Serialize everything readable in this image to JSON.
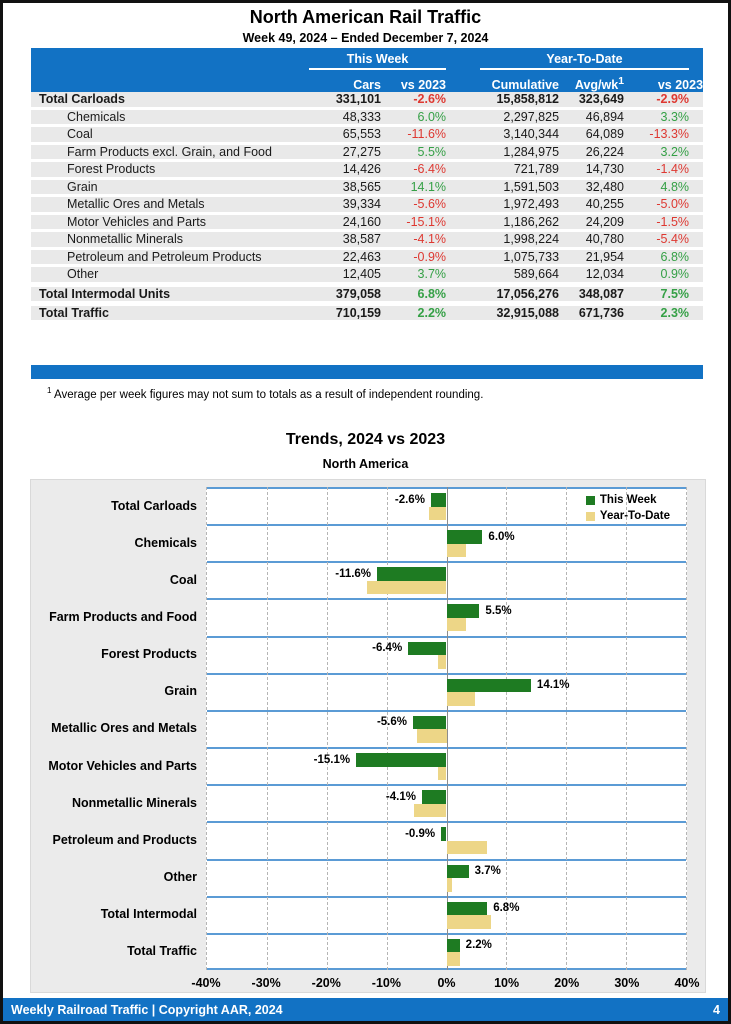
{
  "page": {
    "title": "North American Rail Traffic",
    "subtitle": "Week 49, 2024 – Ended December 7, 2024",
    "footnote_marker": "1",
    "footnote_text": " Average per week figures may not sum to totals as a result of independent rounding.",
    "footer_left": "Weekly Railroad Traffic | Copyright AAR, 2024",
    "footer_page": "4"
  },
  "colors": {
    "accent_blue": "#1272C4",
    "grid_blue": "#5B9BD5",
    "negative_red": "#DE3831",
    "positive_green": "#35A046",
    "bar_green": "#1E7B22",
    "bar_tan": "#EDD687",
    "row_gray": "#E9E9E9",
    "panel_gray": "#EBEBEB"
  },
  "table": {
    "group_this_week": "This Week",
    "group_ytd": "Year-To-Date",
    "col_cars": "Cars",
    "col_tw_vs": "vs 2023",
    "col_cumulative": "Cumulative",
    "col_avgwk": "Avg/wk",
    "col_avgwk_sup": "1",
    "col_ytd_vs": "vs 2023",
    "rows": [
      {
        "name": "Total Carloads",
        "cars": "331,101",
        "tw_vs": "-2.6%",
        "cumulative": "15,858,812",
        "avgwk": "323,649",
        "ytd_vs": "-2.9%",
        "style": "total"
      },
      {
        "name": "Chemicals",
        "cars": "48,333",
        "tw_vs": "6.0%",
        "cumulative": "2,297,825",
        "avgwk": "46,894",
        "ytd_vs": "3.3%",
        "style": "sub"
      },
      {
        "name": "Coal",
        "cars": "65,553",
        "tw_vs": "-11.6%",
        "cumulative": "3,140,344",
        "avgwk": "64,089",
        "ytd_vs": "-13.3%",
        "style": "sub"
      },
      {
        "name": "Farm Products excl. Grain, and Food",
        "cars": "27,275",
        "tw_vs": "5.5%",
        "cumulative": "1,284,975",
        "avgwk": "26,224",
        "ytd_vs": "3.2%",
        "style": "sub"
      },
      {
        "name": "Forest Products",
        "cars": "14,426",
        "tw_vs": "-6.4%",
        "cumulative": "721,789",
        "avgwk": "14,730",
        "ytd_vs": "-1.4%",
        "style": "sub"
      },
      {
        "name": "Grain",
        "cars": "38,565",
        "tw_vs": "14.1%",
        "cumulative": "1,591,503",
        "avgwk": "32,480",
        "ytd_vs": "4.8%",
        "style": "sub"
      },
      {
        "name": "Metallic Ores and Metals",
        "cars": "39,334",
        "tw_vs": "-5.6%",
        "cumulative": "1,972,493",
        "avgwk": "40,255",
        "ytd_vs": "-5.0%",
        "style": "sub"
      },
      {
        "name": "Motor Vehicles and Parts",
        "cars": "24,160",
        "tw_vs": "-15.1%",
        "cumulative": "1,186,262",
        "avgwk": "24,209",
        "ytd_vs": "-1.5%",
        "style": "sub"
      },
      {
        "name": "Nonmetallic Minerals",
        "cars": "38,587",
        "tw_vs": "-4.1%",
        "cumulative": "1,998,224",
        "avgwk": "40,780",
        "ytd_vs": "-5.4%",
        "style": "sub"
      },
      {
        "name": "Petroleum and Petroleum Products",
        "cars": "22,463",
        "tw_vs": "-0.9%",
        "cumulative": "1,075,733",
        "avgwk": "21,954",
        "ytd_vs": "6.8%",
        "style": "sub"
      },
      {
        "name": "Other",
        "cars": "12,405",
        "tw_vs": "3.7%",
        "cumulative": "589,664",
        "avgwk": "12,034",
        "ytd_vs": "0.9%",
        "style": "sub"
      },
      {
        "name": "Total Intermodal Units",
        "cars": "379,058",
        "tw_vs": "6.8%",
        "cumulative": "17,056,276",
        "avgwk": "348,087",
        "ytd_vs": "7.5%",
        "style": "total gap"
      },
      {
        "name": "Total Traffic",
        "cars": "710,159",
        "tw_vs": "2.2%",
        "cumulative": "32,915,088",
        "avgwk": "671,736",
        "ytd_vs": "2.3%",
        "style": "total gap"
      }
    ]
  },
  "chart_data": {
    "type": "bar",
    "orientation": "horizontal",
    "title": "Trends, 2024 vs 2023",
    "subtitle": "North America",
    "categories": [
      "Total Carloads",
      "Chemicals",
      "Coal",
      "Farm Products and Food",
      "Forest Products",
      "Grain",
      "Metallic Ores and Metals",
      "Motor Vehicles and Parts",
      "Nonmetallic Minerals",
      "Petroleum and Products",
      "Other",
      "Total Intermodal",
      "Total Traffic"
    ],
    "series": [
      {
        "name": "This Week",
        "color": "#1E7B22",
        "values": [
          -2.6,
          6.0,
          -11.6,
          5.5,
          -6.4,
          14.1,
          -5.6,
          -15.1,
          -4.1,
          -0.9,
          3.7,
          6.8,
          2.2
        ]
      },
      {
        "name": "Year-To-Date",
        "color": "#EDD687",
        "values": [
          -2.9,
          3.3,
          -13.3,
          3.2,
          -1.4,
          4.8,
          -5.0,
          -1.5,
          -5.4,
          6.8,
          0.9,
          7.5,
          2.3
        ]
      }
    ],
    "bar_labels": [
      "-2.6%",
      "6.0%",
      "-11.6%",
      "5.5%",
      "-6.4%",
      "14.1%",
      "-5.6%",
      "-15.1%",
      "-4.1%",
      "-0.9%",
      "3.7%",
      "6.8%",
      "2.2%"
    ],
    "xlim": [
      -40,
      40
    ],
    "xtick_step": 10,
    "xtick_labels": [
      "-40%",
      "-30%",
      "-20%",
      "-10%",
      "0%",
      "10%",
      "20%",
      "30%",
      "40%"
    ],
    "grid": true,
    "legend_position": "top-right"
  }
}
